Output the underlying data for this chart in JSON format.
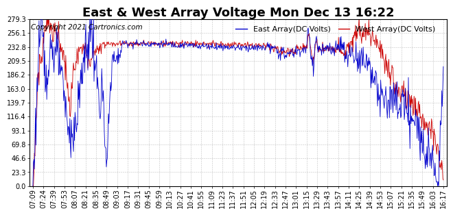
{
  "title": "East & West Array Voltage Mon Dec 13 16:22",
  "copyright": "Copyright 2021 Cartronics.com",
  "east_label": "East Array(DC Volts)",
  "west_label": "West Array(DC Volts)",
  "east_color": "#0000cc",
  "west_color": "#cc0000",
  "background_color": "#ffffff",
  "grid_color": "#999999",
  "yticks": [
    0.0,
    23.3,
    46.6,
    69.8,
    93.1,
    116.4,
    139.7,
    163.0,
    186.2,
    209.5,
    232.8,
    256.1,
    279.3
  ],
  "ymin": 0.0,
  "ymax": 279.3,
  "xtick_labels": [
    "07:09",
    "07:24",
    "07:39",
    "07:53",
    "08:07",
    "08:21",
    "08:35",
    "08:49",
    "09:03",
    "09:17",
    "09:31",
    "09:45",
    "09:59",
    "10:13",
    "10:27",
    "10:41",
    "10:55",
    "11:09",
    "11:23",
    "11:37",
    "11:51",
    "12:05",
    "12:19",
    "12:33",
    "12:47",
    "13:01",
    "13:15",
    "13:29",
    "13:43",
    "13:57",
    "14:11",
    "14:25",
    "14:39",
    "14:53",
    "15:07",
    "15:21",
    "15:35",
    "15:49",
    "16:03",
    "16:17"
  ],
  "title_fontsize": 13,
  "label_fontsize": 8,
  "tick_fontsize": 7,
  "copyright_fontsize": 7.5
}
